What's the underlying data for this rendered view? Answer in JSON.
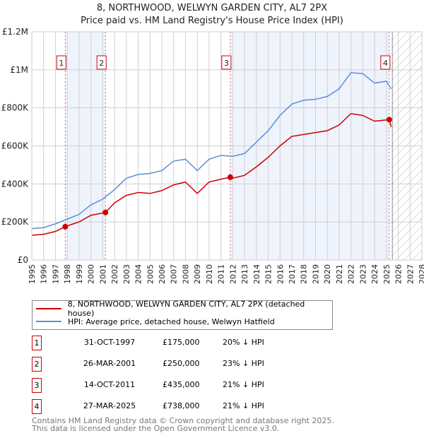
{
  "chart_data": {
    "type": "line",
    "title": "8, NORTHWOOD, WELWYN GARDEN CITY, AL7 2PX",
    "subtitle": "Price paid vs. HM Land Registry's House Price Index (HPI)",
    "xlim": [
      1995,
      2028
    ],
    "ylim": [
      0,
      1200000
    ],
    "y_ticks": [
      {
        "v": 0,
        "label": "£0"
      },
      {
        "v": 200000,
        "label": "£200K"
      },
      {
        "v": 400000,
        "label": "£400K"
      },
      {
        "v": 600000,
        "label": "£600K"
      },
      {
        "v": 800000,
        "label": "£800K"
      },
      {
        "v": 1000000,
        "label": "£1M"
      },
      {
        "v": 1200000,
        "label": "£1.2M"
      }
    ],
    "x_ticks": [
      "1995",
      "1996",
      "1997",
      "1998",
      "1999",
      "2000",
      "2001",
      "2002",
      "2003",
      "2004",
      "2005",
      "2006",
      "2007",
      "2008",
      "2009",
      "2010",
      "2011",
      "2012",
      "2013",
      "2014",
      "2015",
      "2016",
      "2017",
      "2018",
      "2019",
      "2020",
      "2021",
      "2022",
      "2023",
      "2024",
      "2025",
      "2026",
      "2027",
      "2028"
    ],
    "grid": true,
    "legend_position": "bottom",
    "series": [
      {
        "name": "8, NORTHWOOD, WELWYN GARDEN CITY, AL7 2PX (detached house)",
        "color": "#cc0000",
        "x": [
          1995,
          1996,
          1997,
          1997.83,
          1998.5,
          1999,
          2000,
          2001.23,
          2002,
          2003,
          2004,
          2005,
          2006,
          2007,
          2008,
          2009,
          2010,
          2011,
          2011.79,
          2012,
          2013,
          2014,
          2015,
          2016,
          2017,
          2018,
          2019,
          2020,
          2021,
          2022,
          2023,
          2024,
          2025.24,
          2025.4
        ],
        "y": [
          130000,
          135000,
          150000,
          175000,
          190000,
          200000,
          235000,
          250000,
          300000,
          340000,
          355000,
          350000,
          365000,
          395000,
          410000,
          350000,
          410000,
          425000,
          435000,
          430000,
          445000,
          490000,
          540000,
          600000,
          650000,
          660000,
          670000,
          680000,
          710000,
          770000,
          760000,
          730000,
          738000,
          700000
        ]
      },
      {
        "name": "HPI: Average price, detached house, Welwyn Hatfield",
        "color": "#5b8fd6",
        "x": [
          1995,
          1996,
          1997,
          1998,
          1999,
          2000,
          2001,
          2002,
          2003,
          2004,
          2005,
          2006,
          2007,
          2008,
          2009,
          2010,
          2011,
          2012,
          2013,
          2014,
          2015,
          2016,
          2017,
          2018,
          2019,
          2020,
          2021,
          2022,
          2023,
          2024,
          2025,
          2025.4
        ],
        "y": [
          165000,
          170000,
          190000,
          215000,
          240000,
          290000,
          320000,
          370000,
          430000,
          450000,
          455000,
          470000,
          520000,
          530000,
          470000,
          530000,
          550000,
          545000,
          560000,
          620000,
          680000,
          760000,
          820000,
          840000,
          845000,
          860000,
          900000,
          985000,
          980000,
          930000,
          940000,
          900000
        ]
      }
    ],
    "sales": [
      {
        "n": "1",
        "x": 1997.83,
        "date": "31-OCT-1997",
        "price": "£175,000",
        "price_value": 175000,
        "hpi": "20% ↓ HPI"
      },
      {
        "n": "2",
        "x": 2001.23,
        "date": "26-MAR-2001",
        "price": "£250,000",
        "price_value": 250000,
        "hpi": "23% ↓ HPI"
      },
      {
        "n": "3",
        "x": 2011.79,
        "date": "14-OCT-2011",
        "price": "£435,000",
        "price_value": 435000,
        "hpi": "21% ↓ HPI"
      },
      {
        "n": "4",
        "x": 2025.24,
        "date": "27-MAR-2025",
        "price": "£738,000",
        "price_value": 738000,
        "hpi": "21% ↓ HPI"
      }
    ],
    "forecast_start": 2025.5
  },
  "legend": {
    "property": "8, NORTHWOOD, WELWYN GARDEN CITY, AL7 2PX (detached house)",
    "hpi": "HPI: Average price, detached house, Welwyn Hatfield"
  },
  "footer": {
    "line1": "Contains HM Land Registry data © Crown copyright and database right 2025.",
    "line2": "This data is licensed under the Open Government Licence v3.0."
  }
}
